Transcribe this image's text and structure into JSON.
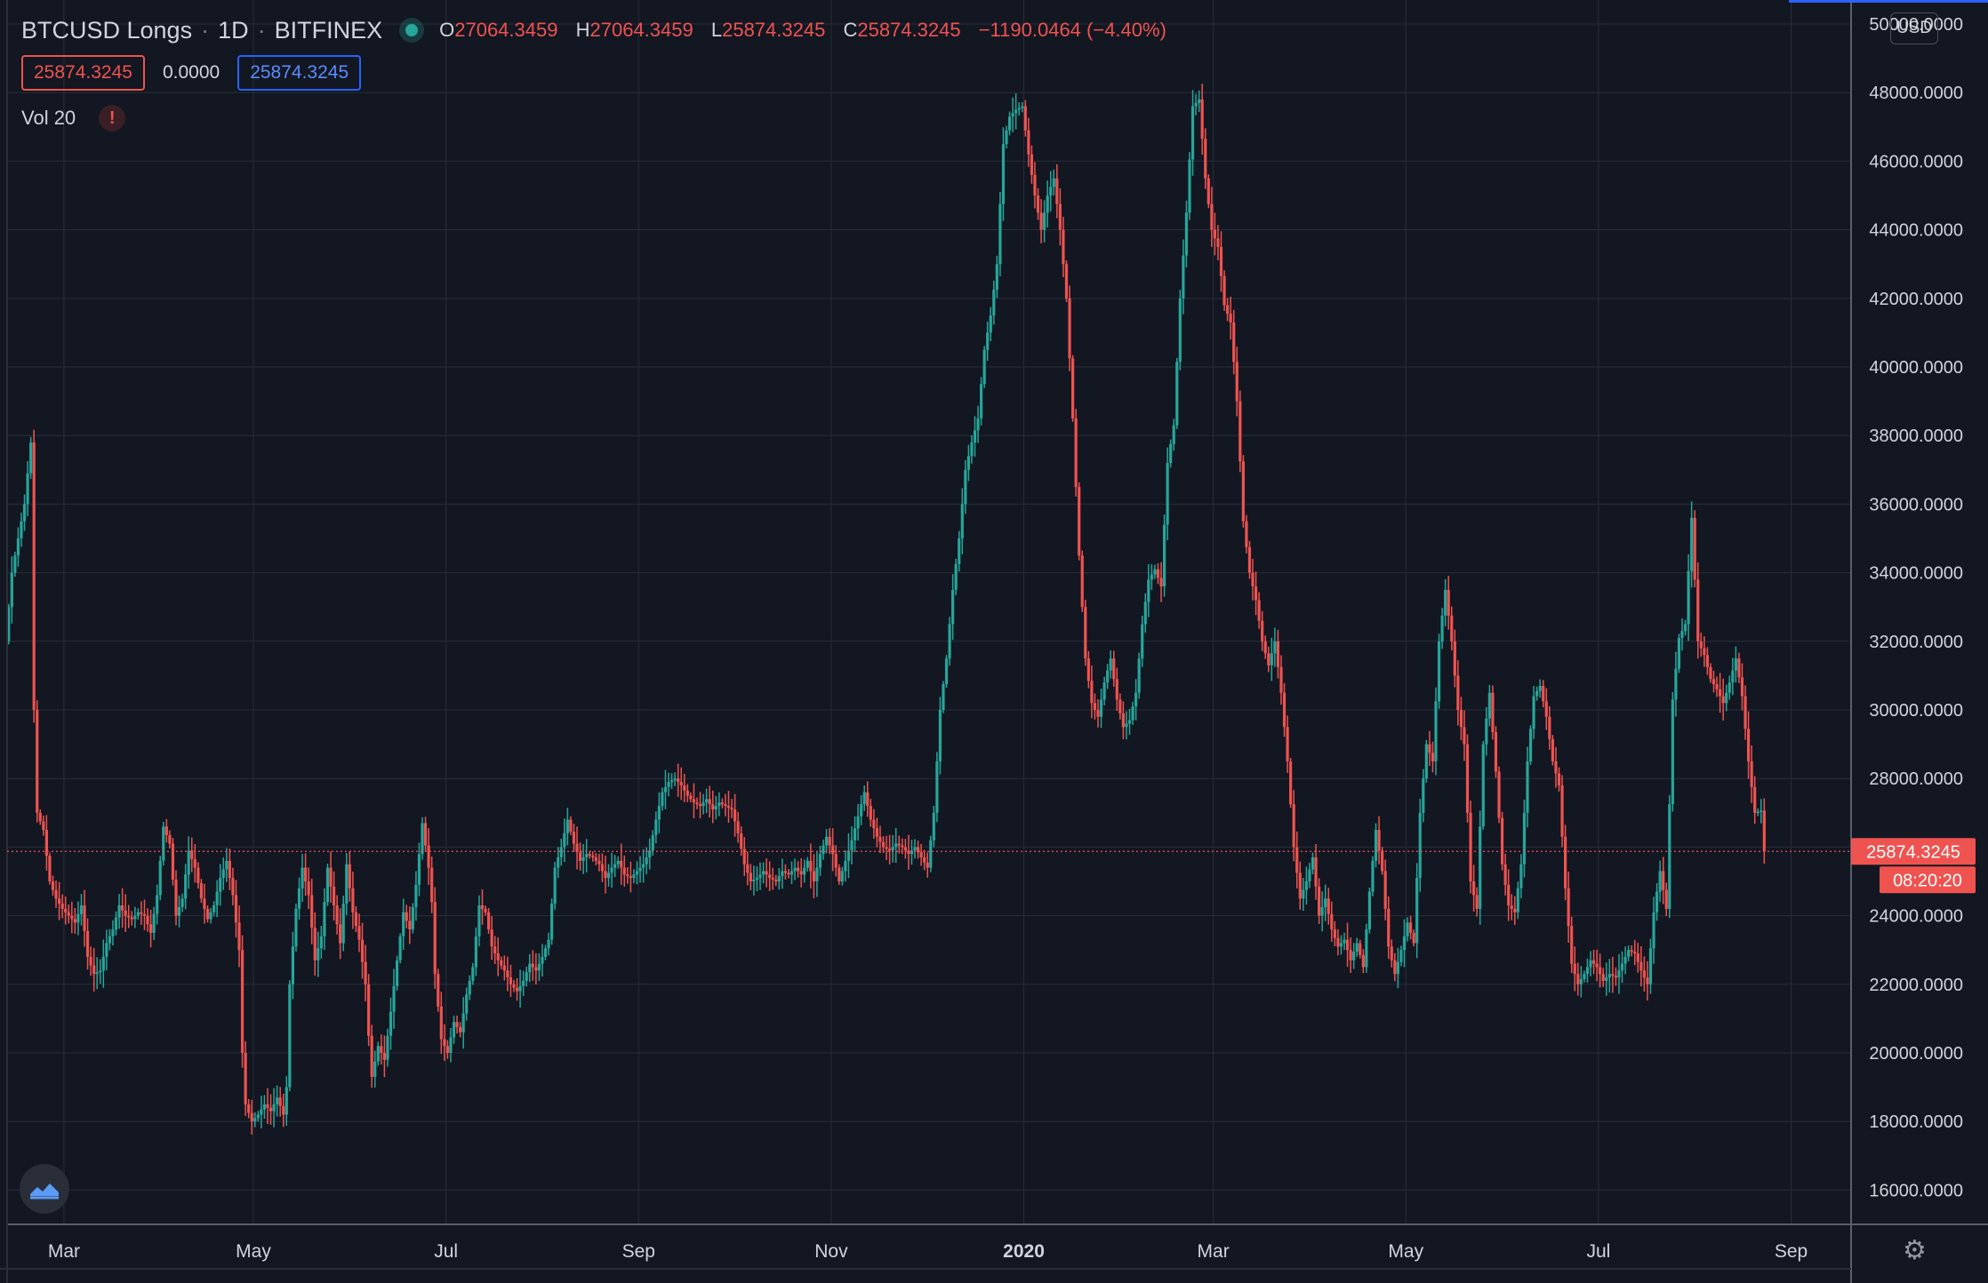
{
  "header": {
    "symbol": "BTCUSD Longs",
    "interval": "1D",
    "exchange": "BITFINEX",
    "ohlc": {
      "o_label": "O",
      "o": "27064.3459",
      "h_label": "H",
      "h": "27064.3459",
      "l_label": "L",
      "l": "25874.3245",
      "c_label": "C",
      "c": "25874.3245",
      "change": "−1190.0464 (−4.40%)"
    },
    "sell_price": "25874.3245",
    "spread": "0.0000",
    "buy_price": "25874.3245",
    "volume_indicator": "Vol 20",
    "warning_glyph": "!",
    "currency_button": "USD"
  },
  "colors": {
    "background": "#131722",
    "grid": "#2a2e39",
    "up": "#26a69a",
    "down": "#ef5350",
    "text": "#d1d4dc"
  },
  "price_tag": {
    "value": "25874.3245",
    "countdown": "08:20:20"
  },
  "icons": {
    "logo": "tradingview-logo-icon",
    "settings": "gear-icon",
    "live": "live-status-dot-icon",
    "warning": "warning-icon"
  },
  "chart_data": {
    "type": "candlestick",
    "y_axis": {
      "min": 15000,
      "max": 50700,
      "ticks": [
        50000,
        48000,
        46000,
        44000,
        42000,
        40000,
        38000,
        36000,
        34000,
        32000,
        30000,
        28000,
        26000,
        24000,
        22000,
        20000,
        18000,
        16000
      ],
      "tick_format": "0000"
    },
    "x_axis": {
      "labels": [
        "Mar",
        "May",
        "Jul",
        "Sep",
        "Nov",
        "2020",
        "Mar",
        "May",
        "Jul",
        "Sep"
      ],
      "label_days": [
        18,
        78,
        139,
        200,
        261,
        322,
        382,
        443,
        504,
        565
      ],
      "bold_label": "2020"
    },
    "x_range_days": [
      0,
      584
    ],
    "grid": true,
    "last_price_line": 25874.3245,
    "series_close": [
      [
        0,
        32000
      ],
      [
        2,
        34000
      ],
      [
        4,
        35000
      ],
      [
        6,
        36000
      ],
      [
        8,
        37800
      ],
      [
        9,
        30000
      ],
      [
        10,
        27000
      ],
      [
        12,
        26500
      ],
      [
        14,
        25000
      ],
      [
        16,
        24500
      ],
      [
        18,
        24200
      ],
      [
        20,
        24000
      ],
      [
        22,
        23800
      ],
      [
        24,
        24300
      ],
      [
        26,
        22800
      ],
      [
        28,
        22300
      ],
      [
        30,
        22400
      ],
      [
        32,
        23200
      ],
      [
        34,
        23600
      ],
      [
        36,
        24300
      ],
      [
        38,
        24000
      ],
      [
        40,
        23900
      ],
      [
        42,
        24100
      ],
      [
        44,
        24000
      ],
      [
        46,
        23500
      ],
      [
        48,
        24600
      ],
      [
        50,
        26600
      ],
      [
        52,
        26100
      ],
      [
        54,
        24000
      ],
      [
        56,
        24500
      ],
      [
        58,
        25900
      ],
      [
        60,
        25400
      ],
      [
        62,
        24500
      ],
      [
        64,
        23900
      ],
      [
        66,
        24300
      ],
      [
        68,
        25100
      ],
      [
        70,
        25600
      ],
      [
        72,
        24600
      ],
      [
        74,
        23000
      ],
      [
        75,
        20000
      ],
      [
        76,
        18500
      ],
      [
        78,
        18000
      ],
      [
        80,
        18200
      ],
      [
        82,
        18500
      ],
      [
        84,
        18300
      ],
      [
        86,
        18700
      ],
      [
        88,
        18200
      ],
      [
        89,
        19000
      ],
      [
        90,
        22000
      ],
      [
        92,
        24200
      ],
      [
        94,
        25400
      ],
      [
        96,
        24600
      ],
      [
        98,
        22700
      ],
      [
        100,
        23400
      ],
      [
        102,
        25400
      ],
      [
        104,
        24300
      ],
      [
        106,
        23200
      ],
      [
        108,
        25500
      ],
      [
        110,
        24100
      ],
      [
        112,
        23300
      ],
      [
        114,
        22000
      ],
      [
        115,
        20500
      ],
      [
        116,
        19300
      ],
      [
        118,
        20200
      ],
      [
        120,
        19800
      ],
      [
        122,
        21200
      ],
      [
        124,
        22700
      ],
      [
        126,
        24100
      ],
      [
        128,
        23600
      ],
      [
        130,
        24900
      ],
      [
        132,
        26700
      ],
      [
        134,
        25400
      ],
      [
        135,
        24400
      ],
      [
        136,
        22300
      ],
      [
        138,
        20400
      ],
      [
        140,
        20000
      ],
      [
        142,
        20900
      ],
      [
        144,
        20600
      ],
      [
        146,
        21700
      ],
      [
        148,
        22500
      ],
      [
        150,
        24300
      ],
      [
        152,
        24100
      ],
      [
        154,
        23100
      ],
      [
        156,
        22700
      ],
      [
        158,
        22400
      ],
      [
        160,
        22000
      ],
      [
        162,
        21800
      ],
      [
        164,
        22100
      ],
      [
        166,
        22600
      ],
      [
        168,
        22400
      ],
      [
        170,
        22800
      ],
      [
        172,
        23300
      ],
      [
        174,
        25400
      ],
      [
        176,
        26000
      ],
      [
        178,
        26800
      ],
      [
        180,
        26100
      ],
      [
        182,
        25600
      ],
      [
        184,
        25800
      ],
      [
        186,
        25700
      ],
      [
        188,
        25500
      ],
      [
        190,
        25100
      ],
      [
        192,
        25400
      ],
      [
        194,
        25600
      ],
      [
        196,
        25200
      ],
      [
        198,
        25100
      ],
      [
        200,
        25300
      ],
      [
        202,
        25500
      ],
      [
        204,
        25900
      ],
      [
        206,
        26800
      ],
      [
        208,
        27600
      ],
      [
        210,
        27900
      ],
      [
        212,
        28000
      ],
      [
        214,
        27800
      ],
      [
        216,
        27500
      ],
      [
        218,
        27300
      ],
      [
        220,
        27200
      ],
      [
        222,
        27400
      ],
      [
        224,
        27100
      ],
      [
        226,
        27300
      ],
      [
        228,
        27200
      ],
      [
        230,
        27100
      ],
      [
        232,
        26400
      ],
      [
        234,
        25500
      ],
      [
        236,
        25000
      ],
      [
        238,
        25100
      ],
      [
        240,
        25300
      ],
      [
        242,
        25100
      ],
      [
        244,
        25000
      ],
      [
        246,
        25300
      ],
      [
        248,
        25200
      ],
      [
        250,
        25400
      ],
      [
        252,
        25200
      ],
      [
        254,
        25600
      ],
      [
        256,
        25000
      ],
      [
        258,
        25800
      ],
      [
        260,
        26300
      ],
      [
        262,
        25800
      ],
      [
        264,
        25000
      ],
      [
        266,
        25600
      ],
      [
        268,
        26200
      ],
      [
        270,
        26900
      ],
      [
        272,
        27600
      ],
      [
        274,
        26800
      ],
      [
        276,
        26300
      ],
      [
        278,
        26000
      ],
      [
        280,
        25900
      ],
      [
        282,
        26100
      ],
      [
        284,
        26000
      ],
      [
        286,
        25800
      ],
      [
        288,
        26000
      ],
      [
        290,
        25700
      ],
      [
        292,
        25400
      ],
      [
        294,
        27000
      ],
      [
        296,
        30000
      ],
      [
        298,
        31500
      ],
      [
        300,
        33500
      ],
      [
        302,
        35000
      ],
      [
        304,
        37000
      ],
      [
        306,
        37800
      ],
      [
        308,
        38500
      ],
      [
        310,
        40500
      ],
      [
        312,
        41500
      ],
      [
        314,
        43000
      ],
      [
        316,
        46500
      ],
      [
        318,
        47300
      ],
      [
        320,
        47500
      ],
      [
        322,
        47600
      ],
      [
        324,
        46200
      ],
      [
        326,
        45000
      ],
      [
        328,
        44000
      ],
      [
        330,
        45000
      ],
      [
        332,
        45500
      ],
      [
        334,
        44000
      ],
      [
        336,
        42000
      ],
      [
        338,
        38500
      ],
      [
        340,
        34500
      ],
      [
        342,
        31500
      ],
      [
        344,
        30200
      ],
      [
        346,
        29800
      ],
      [
        348,
        30800
      ],
      [
        350,
        31500
      ],
      [
        352,
        30300
      ],
      [
        354,
        29500
      ],
      [
        356,
        29700
      ],
      [
        358,
        30500
      ],
      [
        360,
        32500
      ],
      [
        362,
        33800
      ],
      [
        364,
        34100
      ],
      [
        366,
        33600
      ],
      [
        368,
        37200
      ],
      [
        370,
        38300
      ],
      [
        372,
        42000
      ],
      [
        374,
        44500
      ],
      [
        376,
        47600
      ],
      [
        378,
        47800
      ],
      [
        380,
        45500
      ],
      [
        382,
        44000
      ],
      [
        384,
        43500
      ],
      [
        386,
        41800
      ],
      [
        388,
        41300
      ],
      [
        390,
        39000
      ],
      [
        392,
        35500
      ],
      [
        394,
        34000
      ],
      [
        396,
        33200
      ],
      [
        398,
        32000
      ],
      [
        400,
        31300
      ],
      [
        402,
        32000
      ],
      [
        404,
        30500
      ],
      [
        406,
        28500
      ],
      [
        408,
        26000
      ],
      [
        410,
        24500
      ],
      [
        412,
        25000
      ],
      [
        414,
        25700
      ],
      [
        416,
        24000
      ],
      [
        418,
        24500
      ],
      [
        420,
        23600
      ],
      [
        422,
        23100
      ],
      [
        424,
        23300
      ],
      [
        426,
        22700
      ],
      [
        428,
        23200
      ],
      [
        430,
        22500
      ],
      [
        432,
        24700
      ],
      [
        434,
        26500
      ],
      [
        436,
        25300
      ],
      [
        438,
        23100
      ],
      [
        440,
        22300
      ],
      [
        442,
        23000
      ],
      [
        444,
        23800
      ],
      [
        446,
        23200
      ],
      [
        448,
        27000
      ],
      [
        450,
        29000
      ],
      [
        452,
        28500
      ],
      [
        454,
        32000
      ],
      [
        456,
        33500
      ],
      [
        458,
        32000
      ],
      [
        460,
        30000
      ],
      [
        462,
        29000
      ],
      [
        464,
        25000
      ],
      [
        466,
        24200
      ],
      [
        468,
        29000
      ],
      [
        470,
        30500
      ],
      [
        472,
        28200
      ],
      [
        474,
        25500
      ],
      [
        476,
        24300
      ],
      [
        478,
        24100
      ],
      [
        480,
        25500
      ],
      [
        482,
        28500
      ],
      [
        484,
        30400
      ],
      [
        486,
        30700
      ],
      [
        488,
        29800
      ],
      [
        490,
        28500
      ],
      [
        492,
        27800
      ],
      [
        494,
        24800
      ],
      [
        496,
        22600
      ],
      [
        498,
        22000
      ],
      [
        500,
        22300
      ],
      [
        502,
        22700
      ],
      [
        504,
        22500
      ],
      [
        506,
        22100
      ],
      [
        508,
        22300
      ],
      [
        510,
        22200
      ],
      [
        512,
        22600
      ],
      [
        514,
        23000
      ],
      [
        516,
        22900
      ],
      [
        518,
        22400
      ],
      [
        520,
        22000
      ],
      [
        522,
        24100
      ],
      [
        524,
        25300
      ],
      [
        526,
        24200
      ],
      [
        528,
        30300
      ],
      [
        530,
        32100
      ],
      [
        532,
        32500
      ],
      [
        534,
        35600
      ],
      [
        536,
        32000
      ],
      [
        538,
        31600
      ],
      [
        540,
        30900
      ],
      [
        542,
        30600
      ],
      [
        544,
        30200
      ],
      [
        546,
        30800
      ],
      [
        548,
        31500
      ],
      [
        550,
        30400
      ],
      [
        552,
        28500
      ],
      [
        554,
        27000
      ],
      [
        556,
        27064.3459
      ],
      [
        557,
        25874.3245
      ]
    ]
  }
}
